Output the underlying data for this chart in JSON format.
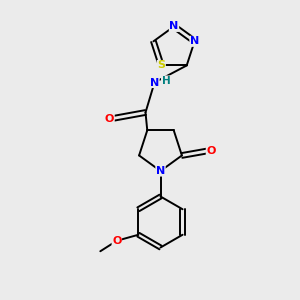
{
  "background_color": "#ebebeb",
  "bond_color": "#000000",
  "atom_colors": {
    "N": "#0000ff",
    "O": "#ff0000",
    "S": "#cccc00",
    "C": "#000000",
    "H": "#008080"
  },
  "lw": 1.4,
  "fs": 8.0
}
